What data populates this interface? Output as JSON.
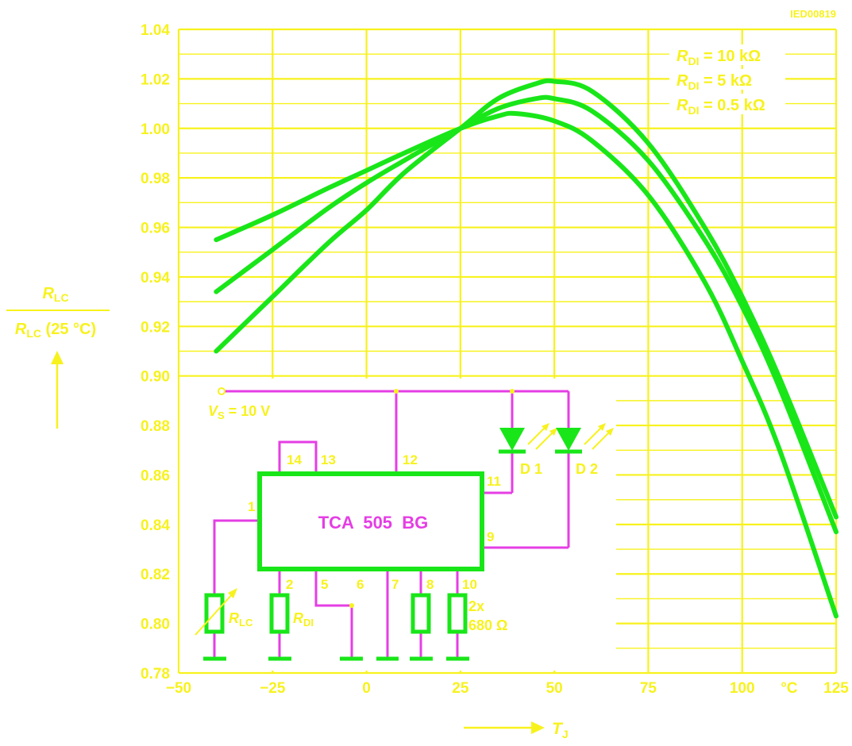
{
  "figure_id": "IED00819",
  "colors": {
    "grid": "#f7f21d",
    "curves": "#19e619",
    "circuit": "#e53ee4",
    "components": "#19e619"
  },
  "chart_data": {
    "type": "line",
    "title": "",
    "xlabel": "T_J",
    "x_unit": "°C",
    "ylabel_numerator": "R_LC",
    "ylabel_denominator": "R_LC (25 °C)",
    "xlim": [
      -50,
      125
    ],
    "ylim": [
      0.78,
      1.04
    ],
    "x_ticks": [
      "−50",
      "−25",
      "0",
      "25",
      "50",
      "75",
      "100",
      "125"
    ],
    "x_tick_values": [
      -50,
      -25,
      0,
      25,
      50,
      75,
      100,
      125
    ],
    "y_ticks": [
      "0.78",
      "0.80",
      "0.82",
      "0.84",
      "0.86",
      "0.88",
      "0.90",
      "0.92",
      "0.94",
      "0.96",
      "0.98",
      "1.00",
      "1.02",
      "1.04"
    ],
    "y_tick_values": [
      0.78,
      0.8,
      0.82,
      0.84,
      0.86,
      0.88,
      0.9,
      0.92,
      0.94,
      0.96,
      0.98,
      1.0,
      1.02,
      1.04
    ],
    "grid": true,
    "legend_position": "top-right",
    "series": [
      {
        "name": "R_DI = 10 kΩ",
        "x": [
          -40,
          -25,
          -10,
          0,
          10,
          25,
          35,
          45,
          50,
          60,
          75,
          90,
          100,
          110,
          125
        ],
        "y": [
          0.91,
          0.932,
          0.954,
          0.967,
          0.982,
          1.0,
          1.012,
          1.018,
          1.019,
          1.015,
          0.994,
          0.96,
          0.932,
          0.899,
          0.843
        ]
      },
      {
        "name": "R_DI = 5 kΩ",
        "x": [
          -40,
          -25,
          -10,
          0,
          10,
          25,
          35,
          45,
          50,
          60,
          75,
          90,
          100,
          110,
          125
        ],
        "y": [
          0.934,
          0.951,
          0.968,
          0.978,
          0.987,
          1.0,
          1.008,
          1.012,
          1.012,
          1.007,
          0.987,
          0.955,
          0.928,
          0.895,
          0.837
        ]
      },
      {
        "name": "R_DI = 0.5 kΩ",
        "x": [
          -40,
          -25,
          -10,
          0,
          10,
          25,
          35,
          40,
          50,
          60,
          75,
          90,
          100,
          110,
          125
        ],
        "y": [
          0.955,
          0.965,
          0.976,
          0.983,
          0.99,
          1.0,
          1.005,
          1.006,
          1.003,
          0.995,
          0.973,
          0.938,
          0.906,
          0.87,
          0.803
        ]
      }
    ]
  },
  "legend": [
    {
      "sym": "R",
      "sub": "DI",
      "val": " = 10 kΩ"
    },
    {
      "sym": "R",
      "sub": "DI",
      "val": " = 5 kΩ"
    },
    {
      "sym": "R",
      "sub": "DI",
      "val": " = 0.5 kΩ"
    }
  ],
  "circuit": {
    "chip_label": "TCA  505  BG",
    "supply_sym": "V",
    "supply_sub": "S",
    "supply_val": " = 10 V",
    "pins": [
      "1",
      "2",
      "5",
      "6",
      "7",
      "8",
      "10",
      "9",
      "11",
      "12",
      "13",
      "14"
    ],
    "led1": "D 1",
    "led2": "D 2",
    "rlc_sym": "R",
    "rlc_sub": "LC",
    "rdi_sym": "R",
    "rdi_sub": "DI",
    "res_count": "2x",
    "res_value": "680 Ω"
  }
}
